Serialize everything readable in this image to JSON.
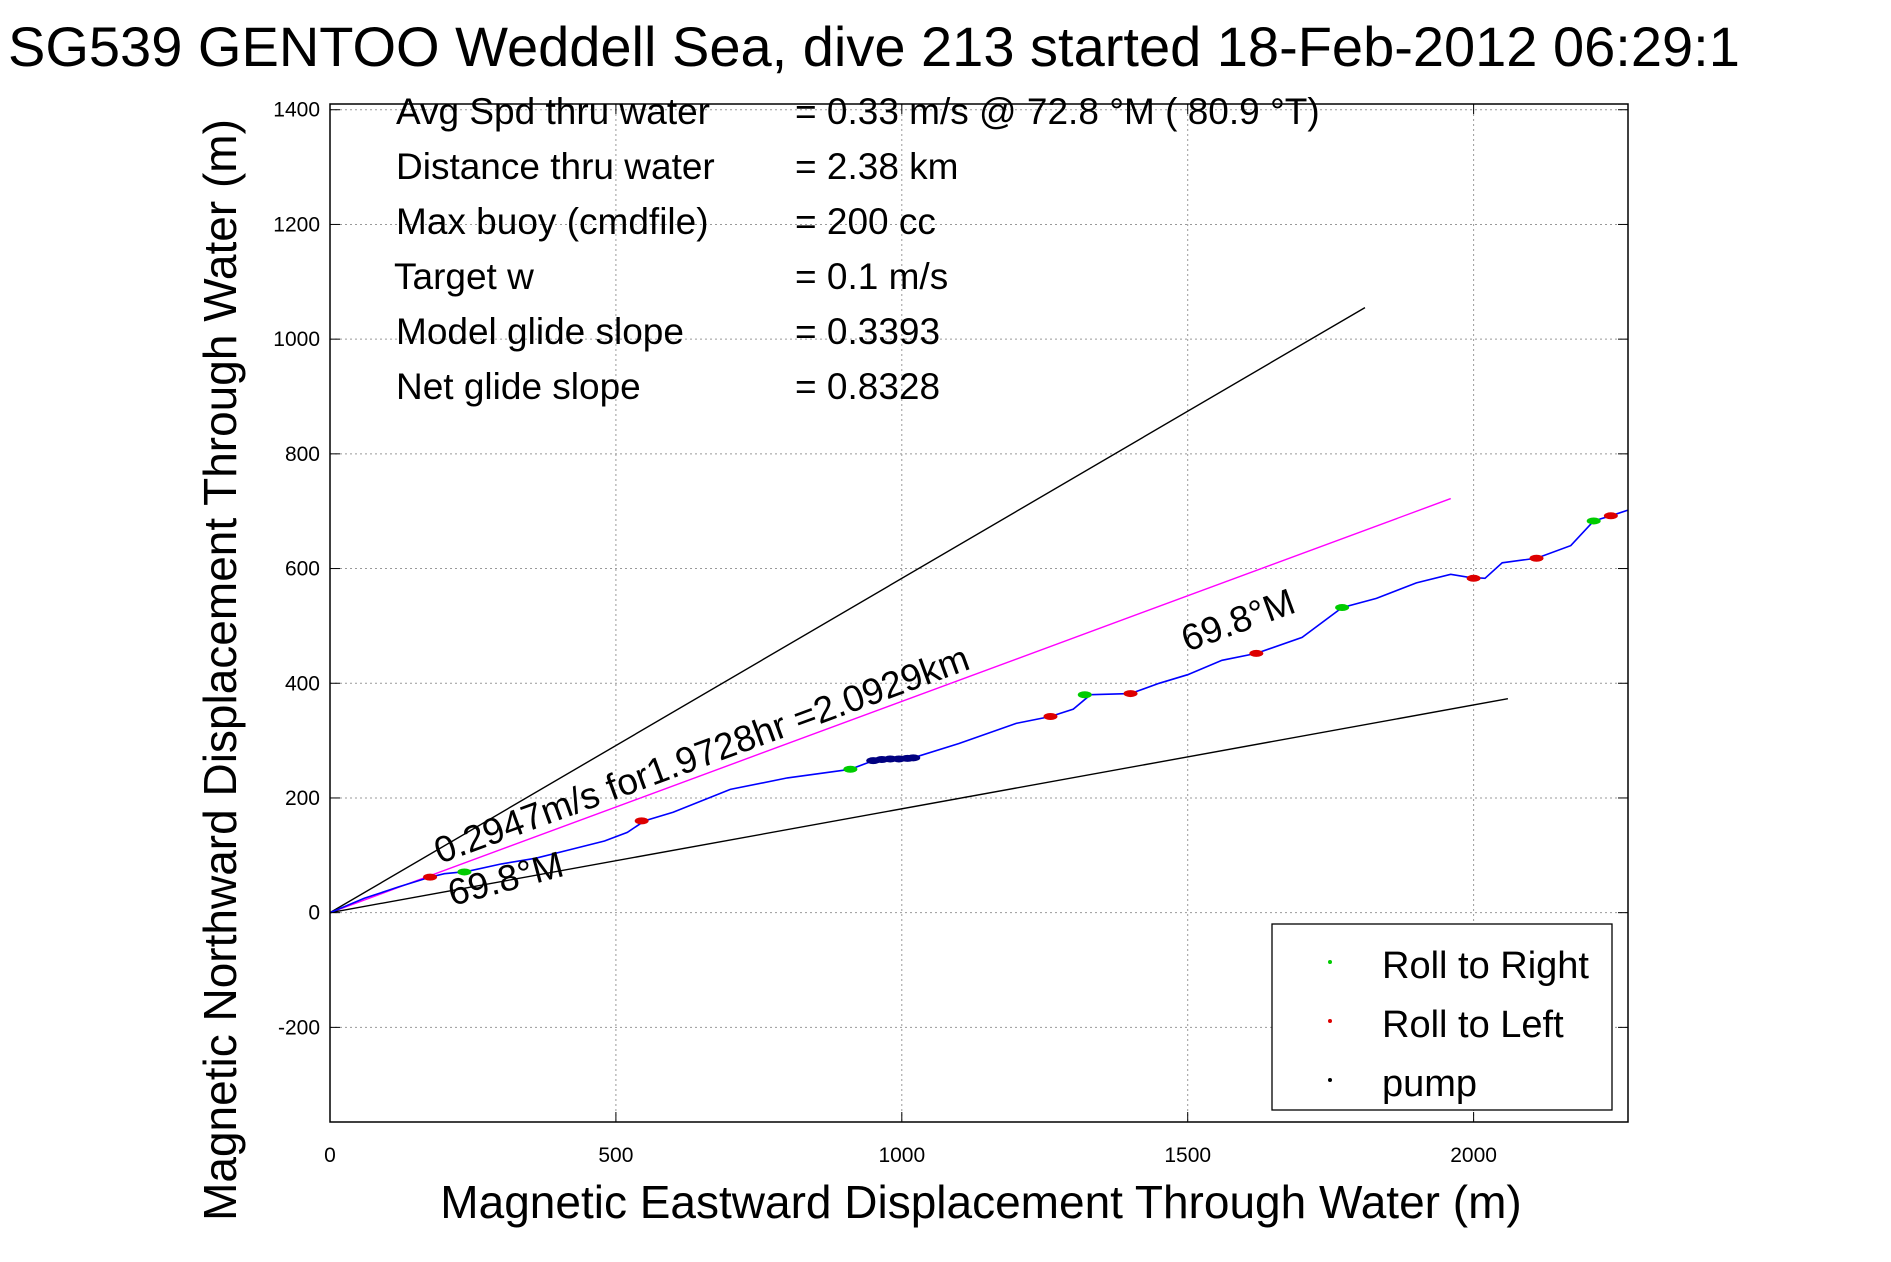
{
  "chart_data": {
    "type": "line",
    "title": "SG539 GENTOO Weddell Sea, dive 213 started 18-Feb-2012 06:29:1",
    "xlabel": "Magnetic Eastward Displacement Through Water (m)",
    "ylabel": "Magnetic Northward Displacement Through Water (m)",
    "xlim": [
      0,
      2270
    ],
    "ylim": [
      -365,
      1410
    ],
    "x_ticks": [
      0,
      500,
      1000,
      1500,
      2000
    ],
    "y_ticks": [
      -200,
      0,
      200,
      400,
      600,
      800,
      1000,
      1200,
      1400
    ],
    "grid": true,
    "stats": [
      {
        "label": "Avg Spd thru water",
        "value": "=  0.33 m/s @  72.8 °M ( 80.9 °T)"
      },
      {
        "label": "Distance thru water",
        "value": "=  2.38 km"
      },
      {
        "label": "Max buoy (cmdfile)",
        "value": "= 200 cc"
      },
      {
        "label": "Target w",
        "value": "= 0.1 m/s"
      },
      {
        "label": "Model glide slope",
        "value": "= 0.3393"
      },
      {
        "label": "Net glide slope",
        "value": "= 0.8328"
      }
    ],
    "annotations": {
      "net_track": "0.2947m/s for1.9728hr =2.0929km",
      "heading_lower": "69.8°M",
      "heading_upper": "69.8°M"
    },
    "lines": [
      {
        "role": "upper-bound",
        "color": "#000000",
        "x": [
          0,
          1810
        ],
        "y": [
          0,
          1055
        ]
      },
      {
        "role": "net-track",
        "color": "#ff00ff",
        "x": [
          0,
          1960
        ],
        "y": [
          0,
          722
        ]
      },
      {
        "role": "lower-bound",
        "color": "#000000",
        "x": [
          0,
          2060
        ],
        "y": [
          0,
          373
        ]
      }
    ],
    "series": [
      {
        "name": "track",
        "color": "#0000ff",
        "x": [
          0,
          60,
          120,
          175,
          200,
          240,
          300,
          360,
          420,
          480,
          520,
          550,
          600,
          700,
          800,
          910,
          950,
          1000,
          1020,
          1100,
          1200,
          1260,
          1300,
          1330,
          1400,
          1450,
          1500,
          1560,
          1620,
          1700,
          1770,
          1830,
          1900,
          1960,
          1990,
          2020,
          2050,
          2110,
          2170,
          2210,
          2240,
          2270
        ],
        "y": [
          0,
          25,
          45,
          62,
          68,
          72,
          85,
          95,
          110,
          125,
          140,
          160,
          175,
          215,
          235,
          250,
          265,
          268,
          270,
          295,
          330,
          342,
          355,
          380,
          382,
          400,
          415,
          440,
          452,
          480,
          532,
          548,
          575,
          590,
          585,
          583,
          610,
          618,
          640,
          683,
          692,
          702
        ]
      },
      {
        "name": "Roll to Right",
        "color": "#00cc00",
        "x": [
          235,
          910,
          1320,
          1770,
          2210
        ],
        "y": [
          71,
          250,
          380,
          532,
          683
        ]
      },
      {
        "name": "Roll to Left",
        "color": "#dd0000",
        "x": [
          175,
          545,
          1260,
          1400,
          1620,
          2000,
          2110,
          2240
        ],
        "y": [
          62,
          160,
          342,
          382,
          452,
          583,
          618,
          692
        ]
      },
      {
        "name": "pump",
        "color": "#000080",
        "x": [
          950,
          965,
          980,
          995,
          1010,
          1020
        ],
        "y": [
          265,
          267,
          268,
          268,
          269,
          270
        ]
      }
    ],
    "legend": {
      "position": "bottom-right",
      "entries": [
        {
          "label": "Roll to Right",
          "color": "#00cc00"
        },
        {
          "label": "Roll to Left",
          "color": "#dd0000"
        },
        {
          "label": "pump",
          "color": "#000000"
        }
      ]
    }
  }
}
